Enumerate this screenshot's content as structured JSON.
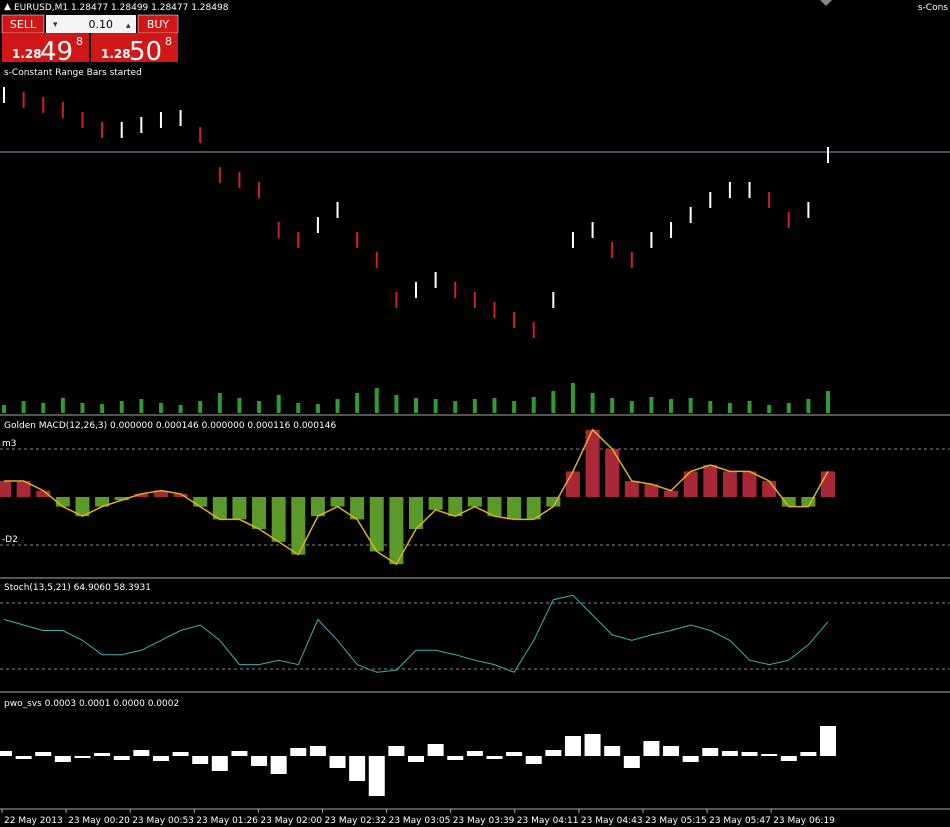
{
  "header": {
    "symbol_line": "EURUSD,M1  1.28477  1.28499  1.28477  1.28498",
    "corner": "s-Cons"
  },
  "trade_panel": {
    "sell_label": "SELL",
    "buy_label": "BUY",
    "lot": "0.10",
    "sell_price": {
      "big": "1.28",
      "pips": "49",
      "point": "8"
    },
    "buy_price": {
      "big": "1.28",
      "pips": "50",
      "point": "8"
    }
  },
  "status": "s-Constant Range Bars started",
  "price": {
    "ylim": [
      1.28237,
      1.2858
    ],
    "current": 1.28498,
    "values": [
      1.28555,
      1.2855,
      1.28545,
      1.2854,
      1.2853,
      1.2852,
      1.2852,
      1.28525,
      1.2853,
      1.28532,
      1.28515,
      1.28475,
      1.2847,
      1.2846,
      1.2842,
      1.2841,
      1.28425,
      1.2844,
      1.2841,
      1.2839,
      1.2835,
      1.2836,
      1.2837,
      1.2836,
      1.2835,
      1.2834,
      1.2833,
      1.2832,
      1.2835,
      1.2841,
      1.2842,
      1.284,
      1.2839,
      1.2841,
      1.2842,
      1.28435,
      1.2845,
      1.2846,
      1.2846,
      1.2845,
      1.2843,
      1.2844,
      1.28495
    ]
  },
  "volume": {
    "ylim": [
      0,
      60
    ],
    "values": [
      8,
      12,
      10,
      15,
      10,
      9,
      12,
      14,
      10,
      8,
      12,
      20,
      15,
      12,
      18,
      10,
      9,
      14,
      20,
      25,
      18,
      15,
      14,
      12,
      14,
      15,
      12,
      16,
      22,
      30,
      20,
      15,
      12,
      16,
      14,
      15,
      12,
      10,
      12,
      8,
      10,
      14,
      22
    ]
  },
  "macd": {
    "label": "Golden MACD(12,26,3) 0.000000 0.000146 0.000000 0.000116 0.000146",
    "ylim": [
      -0.00025,
      0.00025
    ],
    "levels": [
      {
        "value": 0.00015,
        "label": "m3"
      },
      {
        "value": -0.00015,
        "label": "-D2"
      }
    ],
    "values": [
      5e-05,
      5e-05,
      2e-05,
      -3e-05,
      -6e-05,
      -3e-05,
      -1e-05,
      1e-05,
      2e-05,
      1e-05,
      -3e-05,
      -7e-05,
      -7e-05,
      -0.0001,
      -0.00014,
      -0.00018,
      -6e-05,
      -3e-05,
      -7e-05,
      -0.00017,
      -0.00021,
      -0.0001,
      -4e-05,
      -6e-05,
      -3e-05,
      -6e-05,
      -7e-05,
      -7e-05,
      -3e-05,
      8e-05,
      0.00021,
      0.00015,
      5e-05,
      4e-05,
      2e-05,
      8e-05,
      0.0001,
      8e-05,
      8e-05,
      5e-05,
      -3e-05,
      -3e-05,
      8e-05
    ]
  },
  "stoch": {
    "label": "Stoch(13,5,21) 64.9060 58.3931",
    "ylim": [
      0,
      100
    ],
    "levels": [
      80,
      20
    ],
    "values": [
      65,
      60,
      55,
      55,
      46,
      33,
      33,
      37,
      46,
      55,
      60,
      46,
      24,
      24,
      28,
      24,
      65,
      46,
      24,
      17,
      19,
      37,
      37,
      33,
      28,
      24,
      17,
      46,
      83,
      87,
      69,
      51,
      46,
      51,
      55,
      60,
      55,
      46,
      28,
      24,
      28,
      42,
      63
    ]
  },
  "pwo": {
    "label": "pwo_svs 0.0003 0.0001 0.0000 0.0002",
    "ylim": [
      -0.0005,
      0.0006
    ],
    "values": [
      5e-05,
      -3e-05,
      4e-05,
      -6e-05,
      -2e-05,
      3e-05,
      -4e-05,
      6e-05,
      -5e-05,
      4e-05,
      -8e-05,
      -0.00015,
      5e-05,
      -0.0001,
      -0.00018,
      8e-05,
      0.0001,
      -0.00012,
      -0.00025,
      -0.0004,
      0.0001,
      -6e-05,
      0.00012,
      -4e-05,
      5e-05,
      -3e-05,
      4e-05,
      -8e-05,
      6e-05,
      0.0002,
      0.00022,
      0.0001,
      -0.00012,
      0.00015,
      0.0001,
      -6e-05,
      8e-05,
      5e-05,
      4e-05,
      2e-05,
      -5e-05,
      4e-05,
      0.0003
    ]
  },
  "time_axis": [
    "22 May 2013",
    "23 May 00:20",
    "23 May 00:53",
    "23 May 01:26",
    "23 May 02:00",
    "23 May 02:32",
    "23 May 03:05",
    "23 May 03:39",
    "23 May 04:11",
    "23 May 04:43",
    "23 May 05:15",
    "23 May 05:47",
    "23 May 06:19"
  ]
}
